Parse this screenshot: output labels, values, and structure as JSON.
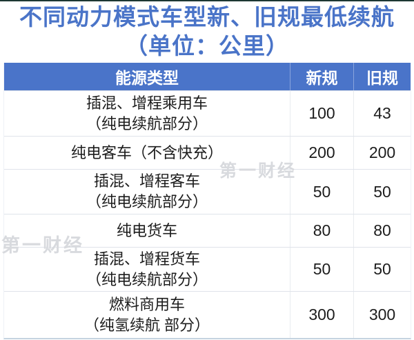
{
  "title": {
    "line1": "不同动力模式车型新、旧规最低续航",
    "line2": "（单位：公里）"
  },
  "table": {
    "headers": {
      "energy_type": "能源类型",
      "new_rule": "新规",
      "old_rule": "旧规"
    },
    "rows": [
      {
        "name": "插混、增程乘用车\n（纯电续航部分）",
        "new": "100",
        "old": "43"
      },
      {
        "name": "纯电客车（不含快充）",
        "new": "200",
        "old": "200"
      },
      {
        "name": "插混、增程客车\n（纯电续航部分）",
        "new": "50",
        "old": "50"
      },
      {
        "name": "纯电货车",
        "new": "80",
        "old": "80"
      },
      {
        "name": "插混、增程货车\n（纯电续航部分）",
        "new": "50",
        "old": "50"
      },
      {
        "name": "燃料商用车\n（纯氢续航 部分）",
        "new": "300",
        "old": "300"
      }
    ]
  },
  "watermark": {
    "text": "第一财经"
  },
  "colors": {
    "accent_blue": "#4a74c9",
    "title_blue": "#4a74c8",
    "row_divider": "#dfe3ea",
    "bottom_border": "#c5d3e0",
    "watermark_gray": "#d8dade"
  },
  "chart_data": {
    "type": "table",
    "title": "不同动力模式车型新、旧规最低续航（单位：公里）",
    "columns": [
      "能源类型",
      "新规",
      "旧规"
    ],
    "rows": [
      [
        "插混、增程乘用车（纯电续航部分）",
        100,
        43
      ],
      [
        "纯电客车（不含快充）",
        200,
        200
      ],
      [
        "插混、增程客车（纯电续航部分）",
        50,
        50
      ],
      [
        "纯电货车",
        80,
        80
      ],
      [
        "插混、增程货车（纯电续航部分）",
        50,
        50
      ],
      [
        "燃料商用车（纯氢续航 部分）",
        300,
        300
      ]
    ],
    "unit": "公里"
  }
}
